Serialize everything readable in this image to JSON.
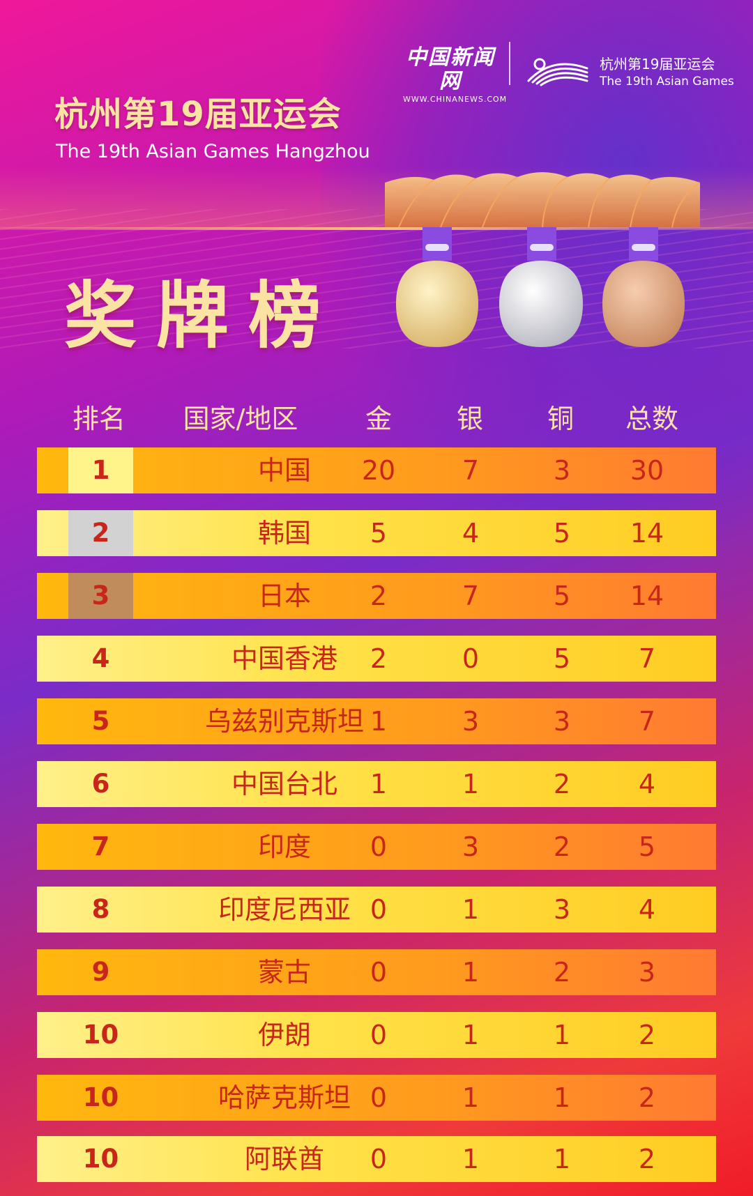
{
  "header": {
    "chinanews_logo": "中国新闻网",
    "chinanews_url": "WWW.CHINANEWS.COM",
    "asian_games_logo_cn": "杭州第19届亚运会",
    "asian_games_logo_en": "The 19th Asian Games",
    "title_cn": "杭州第19届亚运会",
    "title_en": "The 19th Asian Games Hangzhou",
    "board_title": "奖牌榜"
  },
  "table": {
    "headers": {
      "rank": "排名",
      "nation": "国家/地区",
      "gold": "金",
      "silver": "银",
      "bronze": "铜",
      "total": "总数"
    },
    "rows": [
      {
        "rank": "1",
        "nation": "中国",
        "gold": "20",
        "silver": "7",
        "bronze": "3",
        "total": "30"
      },
      {
        "rank": "2",
        "nation": "韩国",
        "gold": "5",
        "silver": "4",
        "bronze": "5",
        "total": "14"
      },
      {
        "rank": "3",
        "nation": "日本",
        "gold": "2",
        "silver": "7",
        "bronze": "5",
        "total": "14"
      },
      {
        "rank": "4",
        "nation": "中国香港",
        "gold": "2",
        "silver": "0",
        "bronze": "5",
        "total": "7"
      },
      {
        "rank": "5",
        "nation": "乌兹别克斯坦",
        "gold": "1",
        "silver": "3",
        "bronze": "3",
        "total": "7"
      },
      {
        "rank": "6",
        "nation": "中国台北",
        "gold": "1",
        "silver": "1",
        "bronze": "2",
        "total": "4"
      },
      {
        "rank": "7",
        "nation": "印度",
        "gold": "0",
        "silver": "3",
        "bronze": "2",
        "total": "5"
      },
      {
        "rank": "8",
        "nation": "印度尼西亚",
        "gold": "0",
        "silver": "1",
        "bronze": "3",
        "total": "4"
      },
      {
        "rank": "9",
        "nation": "蒙古",
        "gold": "0",
        "silver": "1",
        "bronze": "2",
        "total": "3"
      },
      {
        "rank": "10",
        "nation": "伊朗",
        "gold": "0",
        "silver": "1",
        "bronze": "1",
        "total": "2"
      },
      {
        "rank": "10",
        "nation": "哈萨克斯坦",
        "gold": "0",
        "silver": "1",
        "bronze": "1",
        "total": "2"
      },
      {
        "rank": "10",
        "nation": "阿联酋",
        "gold": "0",
        "silver": "1",
        "bronze": "1",
        "total": "2"
      }
    ]
  },
  "colors": {
    "title_gold": "#fbe3a4",
    "row_text": "#c8261a",
    "row_light": "#ffe24a",
    "row_dark": "#ff9a1e",
    "rank_gold": "#fff48a",
    "rank_silver": "#d2d2d2",
    "rank_bronze": "#c08c5c"
  },
  "icons": [
    "chinanews-logo",
    "asian-games-emblem-icon",
    "stadium-icon",
    "gold-medal-icon",
    "silver-medal-icon",
    "bronze-medal-icon"
  ]
}
